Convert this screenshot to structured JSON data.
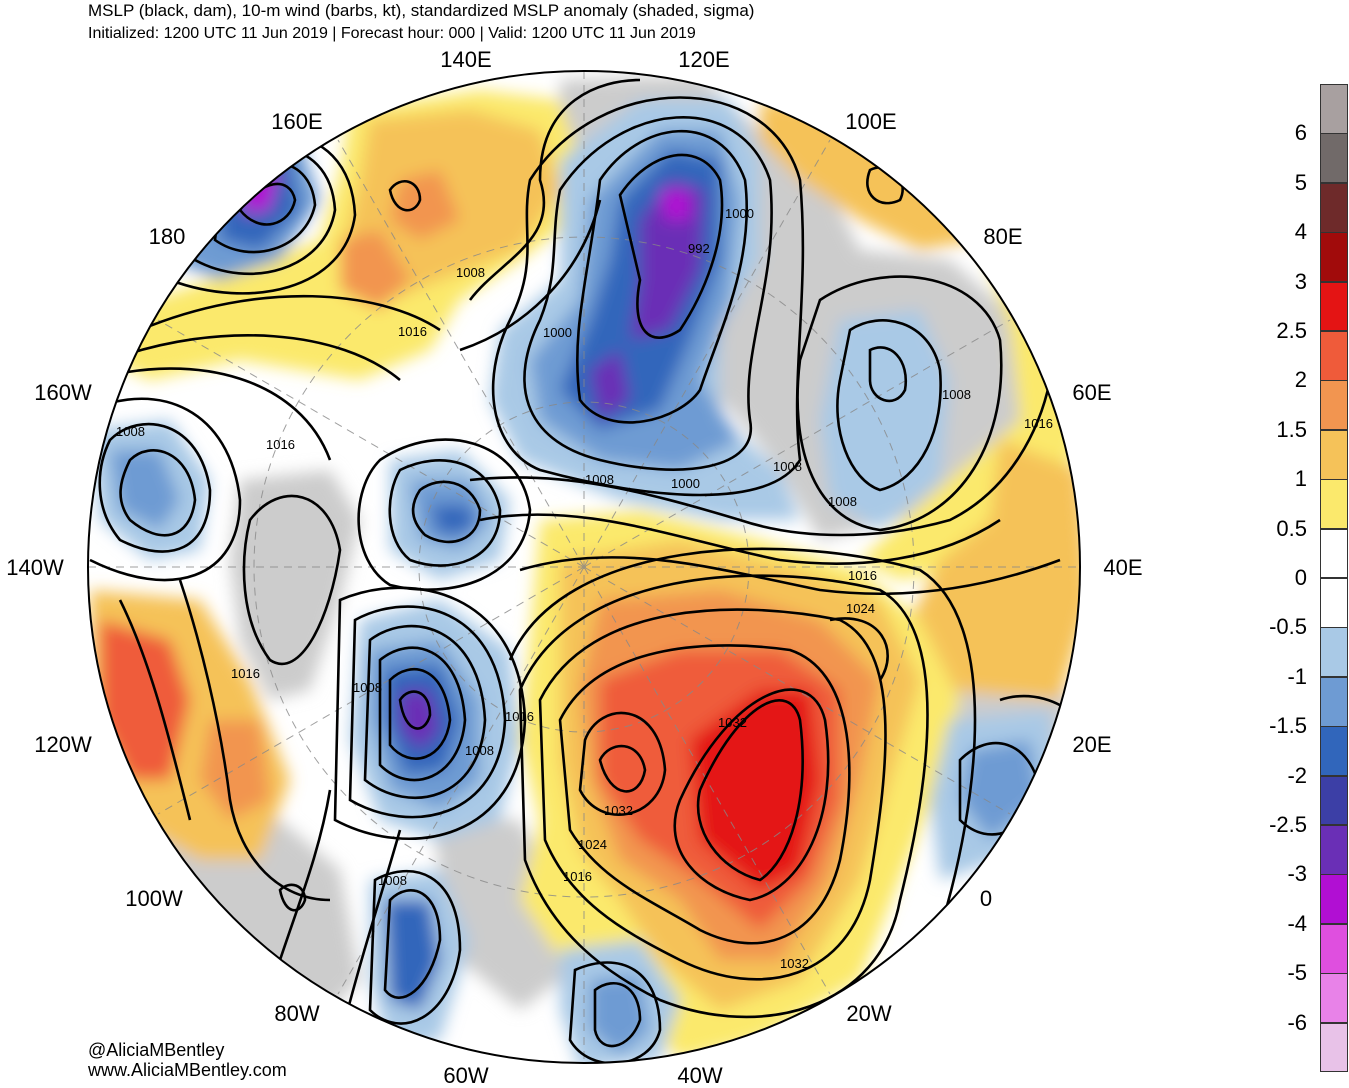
{
  "header": {
    "title": "MSLP (black, dam), 10-m wind (barbs, kt), standardized MSLP anomaly (shaded, sigma)",
    "subtitle": "Initialized: 1200 UTC 11 Jun 2019 | Forecast hour: 000 | Valid: 1200 UTC 11 Jun 2019"
  },
  "map": {
    "projection": "polar-stereographic-north",
    "longitude_labels": [
      "140E",
      "120E",
      "160E",
      "100E",
      "180",
      "80E",
      "160W",
      "60E",
      "140W",
      "40E",
      "120W",
      "20E",
      "100W",
      "0",
      "80W",
      "20W",
      "60W",
      "40W"
    ],
    "isobar_labels": [
      "1000",
      "992",
      "1008",
      "1016",
      "1000",
      "1008",
      "1016",
      "1008",
      "1008",
      "1000",
      "1008",
      "1008",
      "1016",
      "1016",
      "1024",
      "1016",
      "1008",
      "1016",
      "1008",
      "1032",
      "1032",
      "1024",
      "1016",
      "1008",
      "1032"
    ],
    "colors": {
      "neg_6": "#e8c2e8",
      "neg_5": "#e882e8",
      "neg_4": "#df4fdf",
      "neg_3": "#b10fd3",
      "neg_2_5": "#6a2fb6",
      "neg_2": "#3c3fa6",
      "neg_1_5": "#3166bb",
      "neg_1": "#6e9bd3",
      "neg_0_5": "#a9c9e6",
      "neutral": "#ffffff",
      "pos_0_5": "#fbe96c",
      "pos_1": "#f5c259",
      "pos_1_5": "#f29550",
      "pos_2": "#ef5b3a",
      "pos_2_5": "#e41414",
      "pos_3": "#a10b0b",
      "pos_4": "#6e2a2a",
      "pos_5": "#716a69",
      "pos_6": "#a8a0a0",
      "land_gray": "#cccccc"
    }
  },
  "colorbar": {
    "labels": [
      "6",
      "5",
      "4",
      "3",
      "2.5",
      "2",
      "1.5",
      "1",
      "0.5",
      "0",
      "-0.5",
      "-1",
      "-1.5",
      "-2",
      "-2.5",
      "-3",
      "-4",
      "-5",
      "-6"
    ],
    "swatch_colors": [
      "#a8a0a0",
      "#716a69",
      "#6e2a2a",
      "#a10b0b",
      "#e41414",
      "#ef5b3a",
      "#f29550",
      "#f5c259",
      "#fbe96c",
      "#ffffff",
      "#ffffff",
      "#a9c9e6",
      "#6e9bd3",
      "#3166bb",
      "#3c3fa6",
      "#6a2fb6",
      "#b10fd3",
      "#df4fdf",
      "#e882e8",
      "#e8c2e8"
    ]
  },
  "credits": {
    "handle": "@AliciaMBentley",
    "website": "www.AliciaMBentley.com"
  }
}
